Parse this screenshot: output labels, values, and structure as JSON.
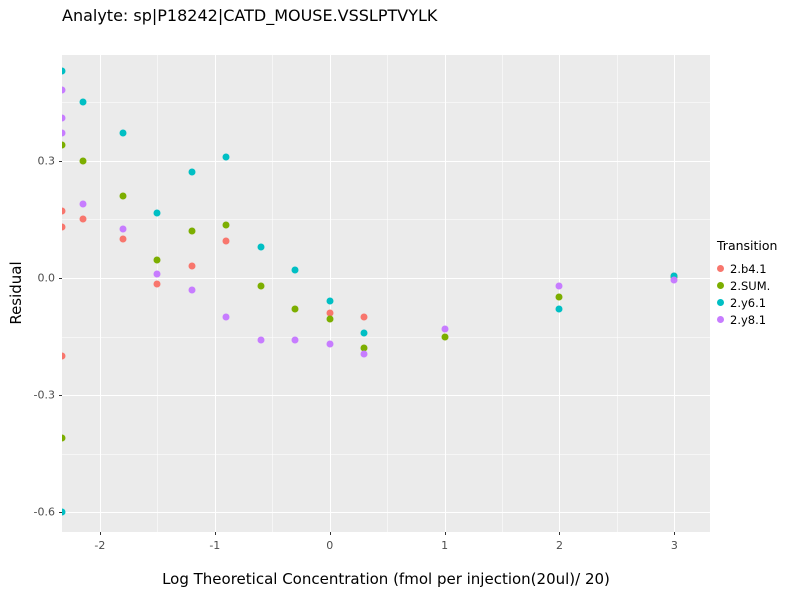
{
  "title": "Analyte: sp|P18242|CATD_MOUSE.VSSLPTVYLK",
  "chart_data": {
    "type": "scatter",
    "title": "Analyte: sp|P18242|CATD_MOUSE.VSSLPTVYLK",
    "xlabel": "Log Theoretical Concentration (fmol per injection(20ul)/ 20)",
    "ylabel": "Residual",
    "xlim": [
      -2.33,
      3.31
    ],
    "ylim": [
      -0.65,
      0.57
    ],
    "x_ticks": [
      -2,
      -1,
      0,
      1,
      2,
      3
    ],
    "x_tick_labels": [
      "-2",
      "-1",
      "0",
      "1",
      "2",
      "3"
    ],
    "y_ticks": [
      0.3,
      0.0,
      -0.3,
      -0.6
    ],
    "y_tick_labels": [
      "0.3",
      "0.0",
      "-0.3",
      "-0.6"
    ],
    "x_minor_ticks": [
      -1.5,
      -0.5,
      0.5,
      1.5,
      2.5
    ],
    "y_minor_ticks": [
      0.45,
      0.15,
      -0.15,
      -0.45
    ],
    "grid": true,
    "panel_bg": "#EBEBEB",
    "legend_title": "Transition",
    "legend_position": "right",
    "series": [
      {
        "name": "2.b4.1",
        "color": "#F8766D",
        "points": [
          [
            -2.33,
            0.17
          ],
          [
            -2.33,
            0.13
          ],
          [
            -2.33,
            -0.2
          ],
          [
            -2.15,
            0.15
          ],
          [
            -1.8,
            0.1
          ],
          [
            -1.5,
            -0.015
          ],
          [
            -1.2,
            0.03
          ],
          [
            -0.9,
            0.095
          ],
          [
            0.0,
            -0.09
          ],
          [
            0.3,
            -0.1
          ],
          [
            3.0,
            0.005
          ]
        ]
      },
      {
        "name": "2.SUM.",
        "color": "#7CAE00",
        "points": [
          [
            -2.33,
            0.34
          ],
          [
            -2.33,
            -0.41
          ],
          [
            -2.15,
            0.3
          ],
          [
            -1.8,
            0.21
          ],
          [
            -1.5,
            0.045
          ],
          [
            -1.2,
            0.12
          ],
          [
            -0.9,
            0.135
          ],
          [
            -0.6,
            -0.02
          ],
          [
            -0.3,
            -0.08
          ],
          [
            0.0,
            -0.105
          ],
          [
            0.3,
            -0.18
          ],
          [
            1.0,
            -0.15
          ],
          [
            2.0,
            -0.05
          ],
          [
            3.0,
            0.002
          ]
        ]
      },
      {
        "name": "2.y6.1",
        "color": "#00BFC4",
        "points": [
          [
            -2.33,
            0.53
          ],
          [
            -2.33,
            -0.6
          ],
          [
            -2.15,
            0.45
          ],
          [
            -1.8,
            0.37
          ],
          [
            -1.5,
            0.165
          ],
          [
            -1.2,
            0.27
          ],
          [
            -0.9,
            0.31
          ],
          [
            -0.6,
            0.08
          ],
          [
            -0.3,
            0.02
          ],
          [
            0.0,
            -0.06
          ],
          [
            0.3,
            -0.14
          ],
          [
            2.0,
            -0.08
          ],
          [
            3.0,
            0.005
          ]
        ]
      },
      {
        "name": "2.y8.1",
        "color": "#C77CFF",
        "points": [
          [
            -2.33,
            0.48
          ],
          [
            -2.33,
            0.41
          ],
          [
            -2.33,
            0.37
          ],
          [
            -2.15,
            0.19
          ],
          [
            -1.8,
            0.125
          ],
          [
            -1.5,
            0.01
          ],
          [
            -1.2,
            -0.03
          ],
          [
            -0.9,
            -0.1
          ],
          [
            -0.6,
            -0.16
          ],
          [
            -0.3,
            -0.16
          ],
          [
            0.0,
            -0.17
          ],
          [
            0.3,
            -0.195
          ],
          [
            1.0,
            -0.13
          ],
          [
            2.0,
            -0.02
          ],
          [
            3.0,
            -0.005
          ]
        ]
      }
    ]
  }
}
